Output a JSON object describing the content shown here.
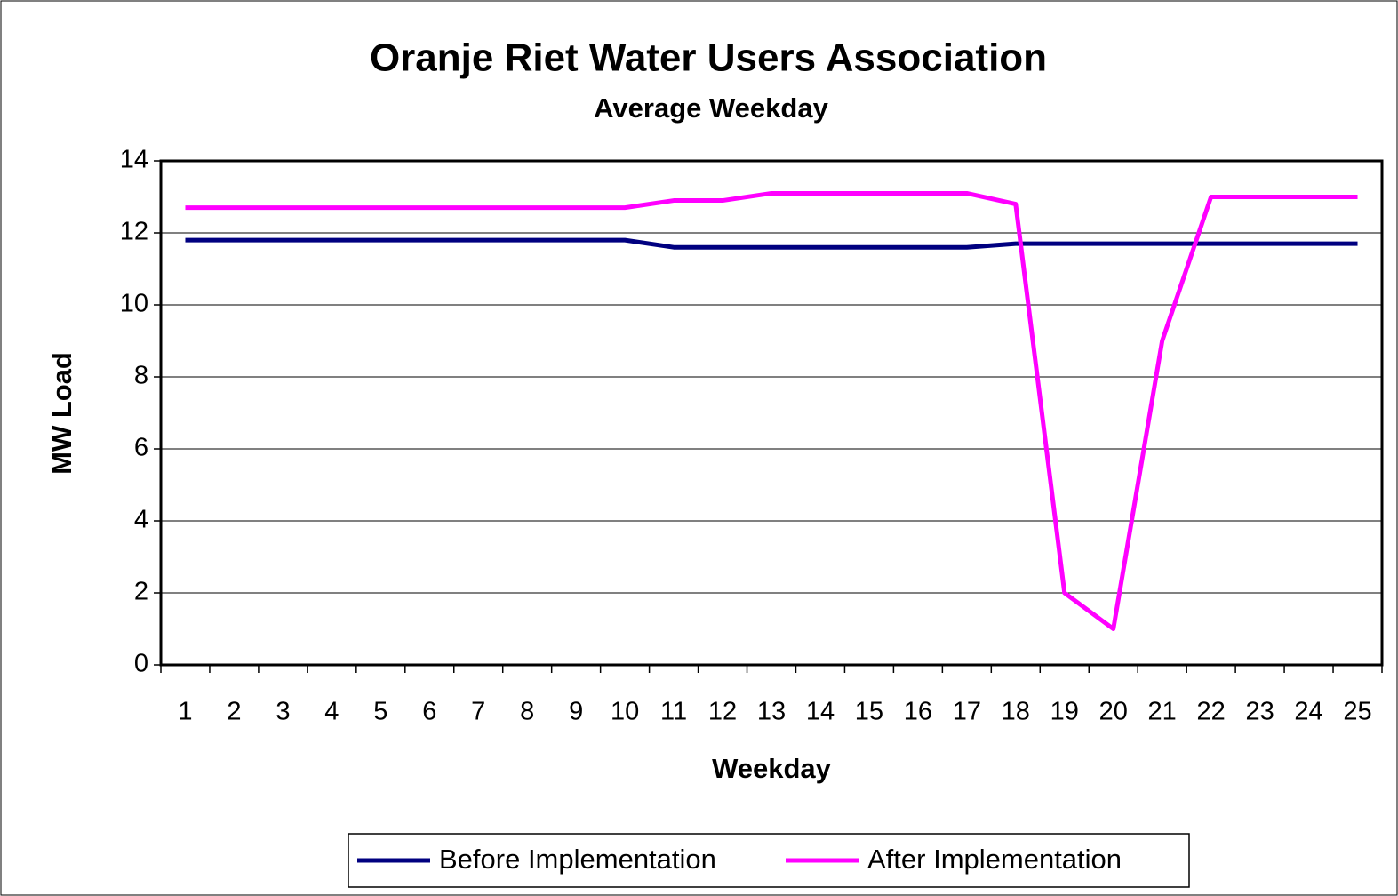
{
  "chart_data": {
    "type": "line",
    "title": "Oranje Riet Water Users Association",
    "subtitle": "Average Weekday",
    "x_label": "Weekday",
    "y_label": "MW Load",
    "categories": [
      "1",
      "2",
      "3",
      "4",
      "5",
      "6",
      "7",
      "8",
      "9",
      "10",
      "11",
      "12",
      "13",
      "14",
      "15",
      "16",
      "17",
      "18",
      "19",
      "20",
      "21",
      "22",
      "23",
      "24",
      "25"
    ],
    "series": [
      {
        "name": "Before Implementation",
        "color": "#000080",
        "values": [
          11.8,
          11.8,
          11.8,
          11.8,
          11.8,
          11.8,
          11.8,
          11.8,
          11.8,
          11.8,
          11.6,
          11.6,
          11.6,
          11.6,
          11.6,
          11.6,
          11.6,
          11.7,
          11.7,
          11.7,
          11.7,
          11.7,
          11.7,
          11.7,
          11.7
        ]
      },
      {
        "name": "After Implementation",
        "color": "#ff00ff",
        "values": [
          12.7,
          12.7,
          12.7,
          12.7,
          12.7,
          12.7,
          12.7,
          12.7,
          12.7,
          12.7,
          12.9,
          12.9,
          13.1,
          13.1,
          13.1,
          13.1,
          13.1,
          12.8,
          2,
          1,
          9,
          13,
          13,
          13,
          13
        ]
      }
    ],
    "ylim": [
      0,
      14
    ],
    "yticks": [
      0,
      2,
      4,
      6,
      8,
      10,
      12,
      14
    ],
    "grid": true,
    "legend": "bottom"
  }
}
